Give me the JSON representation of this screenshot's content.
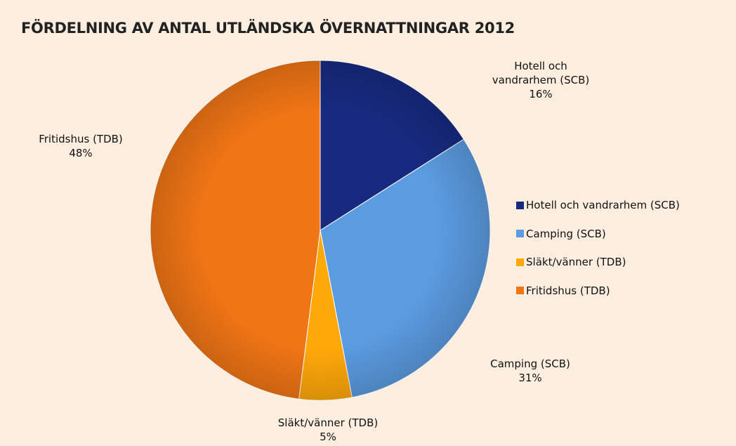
{
  "chart_data": {
    "type": "pie",
    "title": "FÖRDELNING AV ANTAL UTLÄNDSKA ÖVERNATTNINGAR 2012",
    "categories": [
      "Hotell och vandrarhem (SCB)",
      "Camping (SCB)",
      "Släkt/vänner (TDB)",
      "Fritidshus  (TDB)"
    ],
    "values": [
      16,
      31,
      5,
      48
    ],
    "value_labels": [
      "16%",
      "31%",
      "5%",
      "48%"
    ],
    "colors": [
      "#172a80",
      "#5b9be0",
      "#ffa80a",
      "#f07515"
    ],
    "legend": "right"
  }
}
